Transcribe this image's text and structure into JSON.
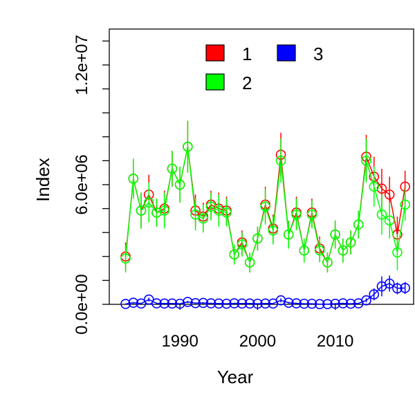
{
  "chart_data": {
    "type": "line",
    "xlabel": "Year",
    "ylabel": "Index",
    "xlim": [
      1980.9,
      2020.1
    ],
    "ylim": [
      0,
      13800000
    ],
    "x_ticks": [
      {
        "value": 1990,
        "label": "1990"
      },
      {
        "value": 2000,
        "label": "2000"
      },
      {
        "value": 2010,
        "label": "2010"
      }
    ],
    "y_ticks": [
      {
        "value": 0,
        "label": "0.0e+00"
      },
      {
        "value": 6000000,
        "label": "6.0e+06"
      },
      {
        "value": 12000000,
        "label": "1.2e+07"
      }
    ],
    "y_minor_ticks": [
      1200000,
      2400000,
      3600000,
      4800000,
      7200000,
      8400000,
      9600000,
      10800000,
      13200000
    ],
    "grid": false,
    "legend_position": "top",
    "x": [
      1983,
      1984,
      1985,
      1986,
      1987,
      1988,
      1989,
      1990,
      1991,
      1992,
      1993,
      1994,
      1995,
      1996,
      1997,
      1998,
      1999,
      2000,
      2001,
      2002,
      2003,
      2004,
      2005,
      2006,
      2007,
      2008,
      2009,
      2010,
      2011,
      2012,
      2013,
      2014,
      2015,
      2016,
      2017,
      2018,
      2019
    ],
    "series": [
      {
        "name": "1",
        "color": "#ff0000",
        "values": [
          2400000,
          6300000,
          4700000,
          5500000,
          4600000,
          4800000,
          6800000,
          6000000,
          7900000,
          4700000,
          4400000,
          5000000,
          4800000,
          4700000,
          2500000,
          3100000,
          2100000,
          3300000,
          5000000,
          3800000,
          7500000,
          3500000,
          4600000,
          2700000,
          4600000,
          2800000,
          2100000,
          3500000,
          2700000,
          3100000,
          4000000,
          7400000,
          6400000,
          5800000,
          5500000,
          3500000,
          5900000
        ],
        "error": [
          700000,
          1000000,
          900000,
          1000000,
          700000,
          900000,
          900000,
          900000,
          1300000,
          800000,
          700000,
          700000,
          800000,
          700000,
          500000,
          600000,
          500000,
          600000,
          900000,
          700000,
          1100000,
          700000,
          800000,
          600000,
          700000,
          600000,
          500000,
          700000,
          600000,
          600000,
          700000,
          1100000,
          1000000,
          1000000,
          900000,
          900000,
          800000
        ]
      },
      {
        "name": "2",
        "color": "#00ff00",
        "values": [
          2300000,
          6300000,
          4700000,
          5100000,
          4600000,
          4700000,
          6800000,
          6000000,
          7900000,
          4500000,
          4300000,
          4900000,
          4700000,
          4600000,
          2500000,
          3000000,
          2100000,
          3300000,
          4900000,
          3700000,
          7200000,
          3500000,
          4500000,
          2700000,
          4500000,
          2700000,
          2100000,
          3500000,
          2700000,
          3100000,
          4000000,
          7200000,
          5900000,
          4500000,
          4200000,
          2600000,
          5000000
        ],
        "error": [
          700000,
          1000000,
          900000,
          1000000,
          700000,
          900000,
          900000,
          900000,
          1300000,
          800000,
          700000,
          700000,
          800000,
          700000,
          500000,
          600000,
          500000,
          600000,
          900000,
          700000,
          1100000,
          700000,
          800000,
          600000,
          700000,
          600000,
          500000,
          700000,
          600000,
          600000,
          700000,
          1100000,
          1000000,
          1000000,
          900000,
          900000,
          800000
        ]
      },
      {
        "name": "3",
        "color": "#0000ff",
        "values": [
          20000,
          80000,
          40000,
          240000,
          50000,
          40000,
          40000,
          30000,
          120000,
          60000,
          70000,
          50000,
          40000,
          30000,
          50000,
          40000,
          40000,
          30000,
          40000,
          40000,
          200000,
          80000,
          50000,
          30000,
          30000,
          10000,
          10000,
          30000,
          50000,
          30000,
          50000,
          200000,
          500000,
          900000,
          1040000,
          800000,
          820000
        ],
        "error": [
          20000,
          40000,
          30000,
          100000,
          30000,
          30000,
          30000,
          20000,
          60000,
          30000,
          40000,
          30000,
          30000,
          20000,
          30000,
          20000,
          30000,
          20000,
          30000,
          30000,
          100000,
          40000,
          30000,
          20000,
          20000,
          10000,
          10000,
          20000,
          30000,
          20000,
          30000,
          100000,
          300000,
          500000,
          400000,
          300000,
          300000
        ]
      }
    ]
  }
}
